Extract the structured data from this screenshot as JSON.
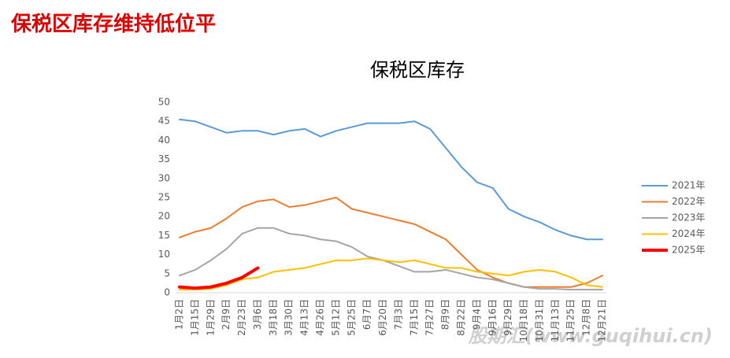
{
  "header": {
    "title": "保税区库存维持低位平"
  },
  "chart_data": {
    "type": "line",
    "title": "保税区库存",
    "categories": [
      "1月2日",
      "1月15日",
      "1月29日",
      "2月9日",
      "2月23日",
      "3月6日",
      "3月18日",
      "3月30日",
      "4月13日",
      "4月26日",
      "5月12日",
      "5月25日",
      "6月7日",
      "6月20日",
      "7月3日",
      "7月15日",
      "7月27日",
      "8月9日",
      "8月22日",
      "9月4日",
      "9月16日",
      "9月29日",
      "10月18日",
      "10月31日",
      "11月13日",
      "11月25日",
      "12月8日",
      "12月21日"
    ],
    "series": [
      {
        "name": "2021年",
        "color": "#5b9bd5",
        "line_width": 2,
        "values": [
          45.5,
          45,
          43.5,
          42,
          42.5,
          42.5,
          41.5,
          42.5,
          43,
          41,
          42.5,
          43.5,
          44.5,
          44.5,
          44.5,
          45,
          43,
          38,
          33,
          29,
          27.5,
          22,
          20,
          18.5,
          16.5,
          15,
          14,
          14
        ]
      },
      {
        "name": "2022年",
        "color": "#ed7d31",
        "line_width": 2,
        "values": [
          14.5,
          16,
          17,
          19.5,
          22.5,
          24,
          24.5,
          22.5,
          23,
          24,
          25,
          22,
          21,
          20,
          19,
          18,
          16,
          14,
          10,
          6,
          4,
          2.5,
          1.5,
          1.5,
          1.5,
          1.5,
          2.5,
          4.5
        ]
      },
      {
        "name": "2023年",
        "color": "#a5a5a5",
        "line_width": 2,
        "values": [
          4.5,
          6,
          8.5,
          11.5,
          15.5,
          17,
          17,
          15.5,
          15,
          14,
          13.5,
          12,
          9.5,
          8.5,
          7,
          5.5,
          5.5,
          6,
          5,
          4,
          3.5,
          2.5,
          1.5,
          1,
          1,
          0.8,
          0.8,
          0.8
        ]
      },
      {
        "name": "2024年",
        "color": "#ffc000",
        "line_width": 2,
        "values": [
          0.8,
          0.8,
          1,
          2,
          3.5,
          4,
          5.5,
          6,
          6.5,
          7.5,
          8.5,
          8.5,
          9,
          8.5,
          8,
          8.5,
          7.5,
          6.5,
          6.5,
          5.5,
          5,
          4.5,
          5.5,
          6,
          5.5,
          4,
          2,
          1.5
        ]
      },
      {
        "name": "2025年",
        "color": "#ff0000",
        "line_width": 4,
        "values": [
          1.5,
          1.2,
          1.5,
          2.5,
          4,
          6.5,
          null,
          null,
          null,
          null,
          null,
          null,
          null,
          null,
          null,
          null,
          null,
          null,
          null,
          null,
          null,
          null,
          null,
          null,
          null,
          null,
          null,
          null
        ]
      }
    ],
    "ylim": [
      0,
      50
    ],
    "yticks": [
      0,
      5,
      10,
      15,
      20,
      25,
      30,
      35,
      40,
      45,
      50
    ],
    "grid": false,
    "legend": "right",
    "watermark": "股期汇(www.guqihui.cn)"
  }
}
